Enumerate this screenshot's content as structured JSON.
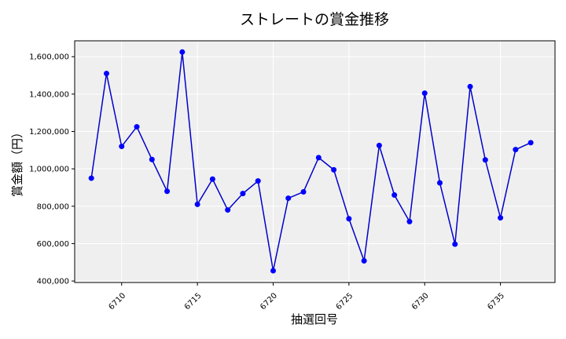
{
  "chart_data": {
    "type": "line",
    "title": "ストレートの賞金推移",
    "xlabel": "抽選回号",
    "ylabel": "賞金額（円）",
    "x": [
      6708,
      6709,
      6710,
      6711,
      6712,
      6713,
      6714,
      6715,
      6716,
      6717,
      6718,
      6719,
      6720,
      6721,
      6722,
      6723,
      6724,
      6725,
      6726,
      6727,
      6728,
      6729,
      6730,
      6731,
      6732,
      6733,
      6734,
      6735,
      6736,
      6737
    ],
    "series": [
      {
        "values": [
          950000,
          1510000,
          1120000,
          1225000,
          1050000,
          880000,
          1625000,
          810000,
          945000,
          780000,
          868000,
          935000,
          455000,
          843000,
          877000,
          1060000,
          995000,
          733000,
          508000,
          1125000,
          860000,
          718000,
          1405000,
          925000,
          597000,
          1440000,
          1048000,
          738000,
          1103000,
          1140000
        ]
      }
    ],
    "xlim": [
      6706.9,
      6738.6
    ],
    "ylim": [
      392000,
      1685000
    ],
    "xticks": [
      6710,
      6715,
      6720,
      6725,
      6730,
      6735
    ],
    "yticks": [
      400000,
      600000,
      800000,
      1000000,
      1200000,
      1400000,
      1600000
    ],
    "ytick_labels": [
      "400,000",
      "600,000",
      "800,000",
      "1,000,000",
      "1,200,000",
      "1,400,000",
      "1,600,000"
    ],
    "grid": true,
    "colors": {
      "line": "#0000cc",
      "marker": "#0000ff",
      "plot_bg": "#efefef",
      "grid": "#ffffff"
    }
  }
}
